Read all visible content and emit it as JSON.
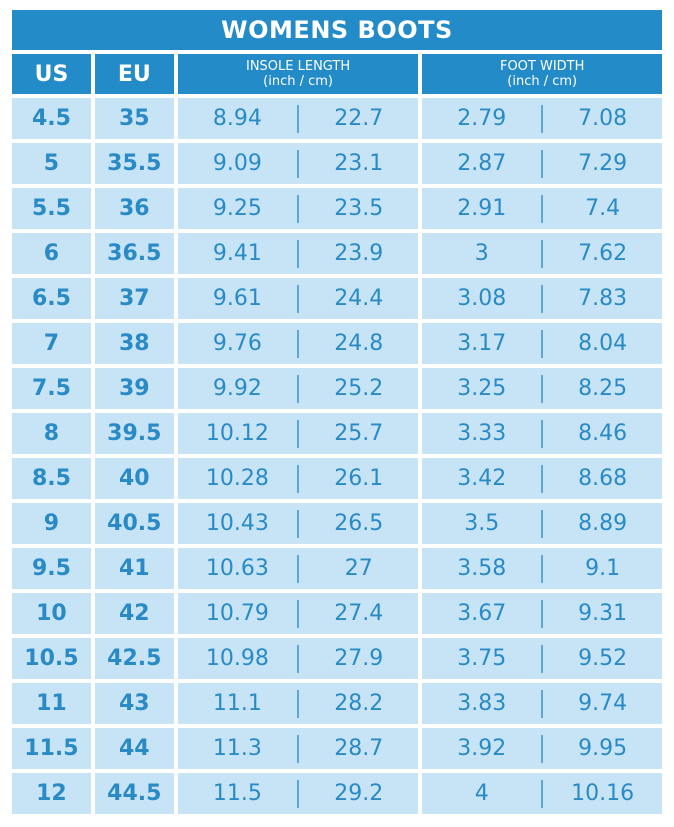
{
  "title": "WOMENS BOOTS",
  "headers": {
    "us": "US",
    "eu": "EU",
    "insole": "INSOLE LENGTH",
    "insole_unit": "(inch / cm)",
    "width": "FOOT WIDTH",
    "width_unit": "(inch / cm)"
  },
  "colors": {
    "header_bg": "#238bc8",
    "row_bg": "#c6e4f6",
    "text": "#2a8ac6"
  },
  "rows": [
    [
      "4.5",
      "35",
      "8.94",
      "22.7",
      "2.79",
      "7.08"
    ],
    [
      "5",
      "35.5",
      "9.09",
      "23.1",
      "2.87",
      "7.29"
    ],
    [
      "5.5",
      "36",
      "9.25",
      "23.5",
      "2.91",
      "7.4"
    ],
    [
      "6",
      "36.5",
      "9.41",
      "23.9",
      "3",
      "7.62"
    ],
    [
      "6.5",
      "37",
      "9.61",
      "24.4",
      "3.08",
      "7.83"
    ],
    [
      "7",
      "38",
      "9.76",
      "24.8",
      "3.17",
      "8.04"
    ],
    [
      "7.5",
      "39",
      "9.92",
      "25.2",
      "3.25",
      "8.25"
    ],
    [
      "8",
      "39.5",
      "10.12",
      "25.7",
      "3.33",
      "8.46"
    ],
    [
      "8.5",
      "40",
      "10.28",
      "26.1",
      "3.42",
      "8.68"
    ],
    [
      "9",
      "40.5",
      "10.43",
      "26.5",
      "3.5",
      "8.89"
    ],
    [
      "9.5",
      "41",
      "10.63",
      "27",
      "3.58",
      "9.1"
    ],
    [
      "10",
      "42",
      "10.79",
      "27.4",
      "3.67",
      "9.31"
    ],
    [
      "10.5",
      "42.5",
      "10.98",
      "27.9",
      "3.75",
      "9.52"
    ],
    [
      "11",
      "43",
      "11.1",
      "28.2",
      "3.83",
      "9.74"
    ],
    [
      "11.5",
      "44",
      "11.3",
      "28.7",
      "3.92",
      "9.95"
    ],
    [
      "12",
      "44.5",
      "11.5",
      "29.2",
      "4",
      "10.16"
    ]
  ]
}
